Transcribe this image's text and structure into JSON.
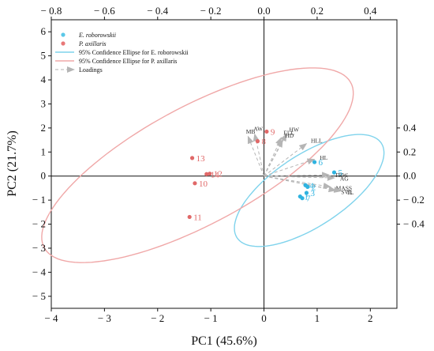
{
  "chart_data": {
    "type": "scatter",
    "title": "",
    "xlabel": "PC1 (45.6%)",
    "ylabel": "PC2 (21.7%)",
    "xlim": [
      -4,
      2.5
    ],
    "ylim": [
      -5.5,
      6.5
    ],
    "x_ticks": [
      -4,
      -3,
      -2,
      -1,
      0,
      1,
      2
    ],
    "y_ticks": [
      -5,
      -4,
      -3,
      -2,
      -1,
      0,
      1,
      2,
      3,
      4,
      5,
      6
    ],
    "loadings_axes": {
      "top_ticks": [
        -0.8,
        -0.6,
        -0.4,
        -0.2,
        0.0,
        0.2,
        0.4
      ],
      "right_ticks": [
        -0.4,
        -0.2,
        0.0,
        0.2,
        0.4
      ],
      "scale": 5
    },
    "legend": {
      "position": "top-left",
      "entries": [
        {
          "label": "E. roborowskii",
          "kind": "point",
          "color": "#5bc8e8"
        },
        {
          "label": "P. axillaris",
          "kind": "point",
          "color": "#e87878"
        },
        {
          "label": "95% Confidence Ellipse for E. roborowskii",
          "kind": "line",
          "color": "#7fd3ec"
        },
        {
          "label": "95% Confidence Ellipse for P. axillaris",
          "kind": "line",
          "color": "#f0a8a8"
        },
        {
          "label": "Loadings",
          "kind": "arrow",
          "color": "#b0b0b0"
        }
      ]
    },
    "series": [
      {
        "name": "E. roborowskii",
        "color": "#2fb3e0",
        "points": [
          {
            "label": "1",
            "x": 0.68,
            "y": -0.85
          },
          {
            "label": "2",
            "x": 0.82,
            "y": -0.45
          },
          {
            "label": "3",
            "x": 0.8,
            "y": -0.7
          },
          {
            "label": "4",
            "x": 0.78,
            "y": -0.38
          },
          {
            "label": "5",
            "x": 1.32,
            "y": 0.15
          },
          {
            "label": "6",
            "x": 0.95,
            "y": 0.58
          },
          {
            "label": "7",
            "x": 0.72,
            "y": -0.92
          }
        ]
      },
      {
        "name": "P. axillaris",
        "color": "#e06868",
        "points": [
          {
            "label": "8",
            "x": -0.12,
            "y": 1.45
          },
          {
            "label": "9",
            "x": 0.05,
            "y": 1.85
          },
          {
            "label": "10",
            "x": -1.3,
            "y": -0.3
          },
          {
            "label": "11",
            "x": -1.4,
            "y": -1.7
          },
          {
            "label": "12",
            "x": -1.02,
            "y": 0.1
          },
          {
            "label": "13",
            "x": -1.35,
            "y": 0.75
          },
          {
            "label": "14",
            "x": -1.08,
            "y": 0.08
          }
        ]
      }
    ],
    "loadings": [
      {
        "label": "MB",
        "x": -0.06,
        "y": 0.33
      },
      {
        "label": "AW",
        "x": -0.035,
        "y": 0.35
      },
      {
        "label": "HW",
        "x": 0.085,
        "y": 0.35
      },
      {
        "label": "ELL",
        "x": 0.065,
        "y": 0.32
      },
      {
        "label": "HD",
        "x": 0.07,
        "y": 0.3
      },
      {
        "label": "HLL",
        "x": 0.16,
        "y": 0.27
      },
      {
        "label": "HL",
        "x": 0.19,
        "y": 0.14
      },
      {
        "label": "TBW",
        "x": 0.245,
        "y": 0.01
      },
      {
        "label": "AG",
        "x": 0.265,
        "y": -0.016
      },
      {
        "label": "MASS",
        "x": 0.25,
        "y": -0.09
      },
      {
        "label": "SVL",
        "x": 0.27,
        "y": -0.12
      },
      {
        "label": "TL",
        "x": 0.29,
        "y": -0.125
      }
    ],
    "ellipses": [
      {
        "series": "E. roborowskii",
        "cx": 0.85,
        "cy": -0.6,
        "rx": 2.55,
        "ry": 0.95,
        "angle_deg": 64,
        "color": "#7fd3ec"
      },
      {
        "series": "P. axillaris",
        "cx": -1.25,
        "cy": 0.45,
        "rx": 4.7,
        "ry": 1.7,
        "angle_deg": 57,
        "color": "#f0a8a8"
      }
    ]
  }
}
